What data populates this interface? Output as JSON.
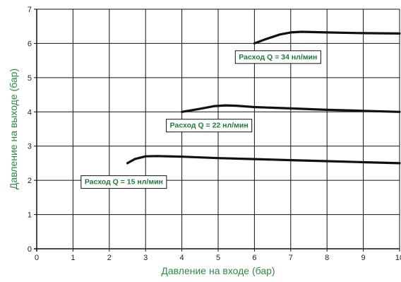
{
  "colors": {
    "label": "#2a8a45",
    "annotation": "#1f7a3a",
    "line": "#111111",
    "grid": "#111111"
  },
  "chart_data": {
    "type": "line",
    "xlabel": "Давление на входе (бар)",
    "ylabel": "Давление на выходе (бар)",
    "xlim": [
      0,
      10
    ],
    "ylim": [
      0,
      7
    ],
    "xticks": [
      "0",
      "1",
      "2",
      "3",
      "4",
      "5",
      "6",
      "7",
      "8",
      "9",
      "10"
    ],
    "yticks": [
      "0",
      "1",
      "2",
      "3",
      "4",
      "5",
      "6",
      "7"
    ],
    "grid": true,
    "series": [
      {
        "name": "Расход Q = 15 нл/мин",
        "x": [
          2.5,
          2.7,
          3.0,
          3.3,
          4,
          5,
          6,
          7,
          8,
          9,
          10
        ],
        "y": [
          2.5,
          2.62,
          2.7,
          2.71,
          2.69,
          2.65,
          2.62,
          2.59,
          2.56,
          2.53,
          2.5
        ]
      },
      {
        "name": "Расход Q = 22 нл/мин",
        "x": [
          4.0,
          4.5,
          4.9,
          5.2,
          5.5,
          6,
          7,
          8,
          9,
          10
        ],
        "y": [
          4.0,
          4.09,
          4.17,
          4.19,
          4.18,
          4.14,
          4.1,
          4.06,
          4.03,
          4.0
        ]
      },
      {
        "name": "Расход Q = 34 нл/мин",
        "x": [
          6.0,
          6.3,
          6.7,
          7.0,
          7.3,
          7.6,
          8,
          9,
          10
        ],
        "y": [
          6.0,
          6.12,
          6.26,
          6.32,
          6.34,
          6.33,
          6.32,
          6.3,
          6.29
        ]
      }
    ],
    "annotations": [
      {
        "text": "Расход Q = 34 нл/мин",
        "x": 6.65,
        "y": 5.62
      },
      {
        "text": "Расход Q = 22 нл/мин",
        "x": 4.75,
        "y": 3.62
      },
      {
        "text": "Расход Q = 15 нл/мин",
        "x": 2.4,
        "y": 1.97
      }
    ]
  }
}
